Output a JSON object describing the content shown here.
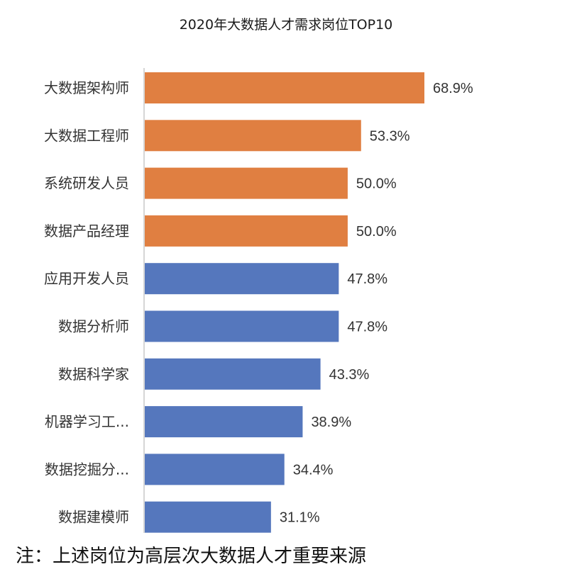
{
  "chart_data": {
    "type": "bar",
    "orientation": "horizontal",
    "title": "2020年大数据人才需求岗位TOP10",
    "categories": [
      "大数据架构师",
      "大数据工程师",
      "系统研发人员",
      "数据产品经理",
      "应用开发人员",
      "数据分析师",
      "数据科学家",
      "机器学习工...",
      "数据挖掘分...",
      "数据建模师"
    ],
    "values": [
      68.9,
      53.3,
      50.0,
      50.0,
      47.8,
      47.8,
      43.3,
      38.9,
      34.4,
      31.1
    ],
    "data_labels": [
      "68.9%",
      "53.3%",
      "50.0%",
      "50.0%",
      "47.8%",
      "47.8%",
      "43.3%",
      "38.9%",
      "34.4%",
      "31.1%"
    ],
    "unit": "%",
    "bar_colors": [
      "#E07F41",
      "#E07F41",
      "#E07F41",
      "#E07F41",
      "#5577BD",
      "#5577BD",
      "#5577BD",
      "#5577BD",
      "#5577BD",
      "#5577BD"
    ],
    "grid": false,
    "legend": "none"
  },
  "footnote": "注：上述岗位为高层次大数据人才重要来源"
}
